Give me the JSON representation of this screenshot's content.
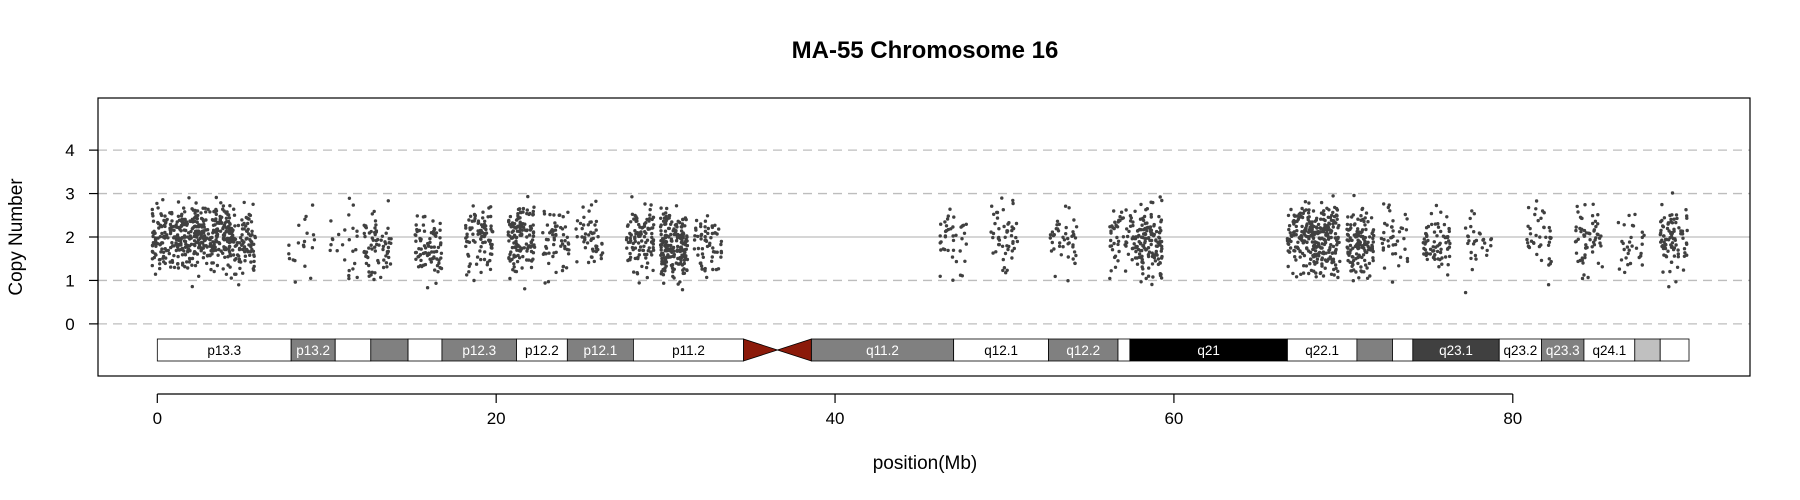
{
  "chart_data": {
    "type": "scatter",
    "title": "MA-55  Chromosome 16",
    "xlabel": "position(Mb)",
    "ylabel": "Copy Number",
    "xlim": [
      -3.5,
      94
    ],
    "ylim": [
      -1.2,
      5.2
    ],
    "x_ticks": [
      0,
      20,
      40,
      60,
      80
    ],
    "y_ticks": [
      0,
      1,
      2,
      3,
      4
    ],
    "dashed_gridlines": [
      0,
      1,
      3,
      4
    ],
    "solid_gridline": 2,
    "point_color": "#404040",
    "centromere_color": "#8b1a0a",
    "summary_series": {
      "name": "",
      "x": [
        0.5,
        2,
        3.5,
        5,
        8.5,
        11,
        13,
        16,
        19,
        21.5,
        23.5,
        25.5,
        28.5,
        30.5,
        32.5,
        47,
        50,
        53.5,
        57,
        58.5,
        67.5,
        69,
        71,
        73,
        75.5,
        78,
        81.5,
        84.5,
        87,
        89.5
      ],
      "y": [
        1.95,
        2.05,
        2.0,
        1.9,
        1.85,
        1.95,
        1.8,
        1.75,
        2.0,
        2.05,
        2.0,
        1.9,
        1.95,
        1.8,
        1.9,
        1.9,
        2.05,
        1.95,
        2.05,
        1.9,
        2.0,
        1.95,
        1.85,
        2.0,
        1.95,
        1.85,
        2.05,
        2.0,
        1.95,
        1.9
      ]
    },
    "ideogram": {
      "bands": [
        {
          "label": "p13.3",
          "start": 0.0,
          "end": 7.9,
          "fill": "#ffffff",
          "text": "#000000"
        },
        {
          "label": "p13.2",
          "start": 7.9,
          "end": 10.5,
          "fill": "#808080",
          "text": "#ffffff"
        },
        {
          "label": "",
          "start": 10.5,
          "end": 12.6,
          "fill": "#ffffff",
          "text": "#000000"
        },
        {
          "label": "",
          "start": 12.6,
          "end": 14.8,
          "fill": "#808080",
          "text": "#ffffff"
        },
        {
          "label": "",
          "start": 14.8,
          "end": 16.8,
          "fill": "#ffffff",
          "text": "#000000"
        },
        {
          "label": "p12.3",
          "start": 16.8,
          "end": 21.2,
          "fill": "#808080",
          "text": "#ffffff"
        },
        {
          "label": "p12.2",
          "start": 21.2,
          "end": 24.2,
          "fill": "#ffffff",
          "text": "#000000"
        },
        {
          "label": "p12.1",
          "start": 24.2,
          "end": 28.1,
          "fill": "#808080",
          "text": "#ffffff"
        },
        {
          "label": "p11.2",
          "start": 28.1,
          "end": 34.6,
          "fill": "#ffffff",
          "text": "#000000"
        },
        {
          "label": "q11.2",
          "start": 38.6,
          "end": 47.0,
          "fill": "#808080",
          "text": "#ffffff"
        },
        {
          "label": "q12.1",
          "start": 47.0,
          "end": 52.6,
          "fill": "#ffffff",
          "text": "#000000"
        },
        {
          "label": "q12.2",
          "start": 52.6,
          "end": 56.7,
          "fill": "#808080",
          "text": "#ffffff"
        },
        {
          "label": "",
          "start": 56.7,
          "end": 57.4,
          "fill": "#ffffff",
          "text": "#000000"
        },
        {
          "label": "q21",
          "start": 57.4,
          "end": 66.7,
          "fill": "#000000",
          "text": "#ffffff"
        },
        {
          "label": "q22.1",
          "start": 66.7,
          "end": 70.8,
          "fill": "#ffffff",
          "text": "#000000"
        },
        {
          "label": "",
          "start": 70.8,
          "end": 72.9,
          "fill": "#808080",
          "text": "#ffffff"
        },
        {
          "label": "",
          "start": 72.9,
          "end": 74.1,
          "fill": "#ffffff",
          "text": "#000000"
        },
        {
          "label": "q23.1",
          "start": 74.1,
          "end": 79.2,
          "fill": "#404040",
          "text": "#ffffff"
        },
        {
          "label": "q23.2",
          "start": 79.2,
          "end": 81.7,
          "fill": "#ffffff",
          "text": "#000000"
        },
        {
          "label": "q23.3",
          "start": 81.7,
          "end": 84.2,
          "fill": "#808080",
          "text": "#ffffff"
        },
        {
          "label": "q24.1",
          "start": 84.2,
          "end": 87.2,
          "fill": "#ffffff",
          "text": "#000000"
        },
        {
          "label": "",
          "start": 87.2,
          "end": 88.7,
          "fill": "#c0c0c0",
          "text": "#000000"
        },
        {
          "label": "",
          "start": 88.7,
          "end": 90.4,
          "fill": "#ffffff",
          "text": "#000000"
        }
      ],
      "centromere": {
        "start": 34.6,
        "end": 38.6
      }
    }
  }
}
